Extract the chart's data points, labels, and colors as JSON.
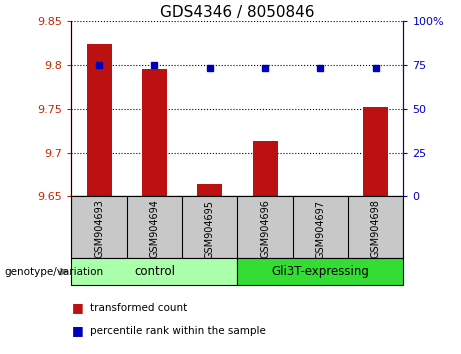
{
  "title": "GDS4346 / 8050846",
  "samples": [
    "GSM904693",
    "GSM904694",
    "GSM904695",
    "GSM904696",
    "GSM904697",
    "GSM904698"
  ],
  "red_values": [
    9.824,
    9.796,
    9.664,
    9.713,
    9.651,
    9.752
  ],
  "blue_values": [
    75,
    75,
    73.5,
    73.5,
    73.5,
    73.5
  ],
  "ylim_left": [
    9.65,
    9.85
  ],
  "ylim_right": [
    0,
    100
  ],
  "yticks_left": [
    9.65,
    9.7,
    9.75,
    9.8,
    9.85
  ],
  "yticks_right": [
    0,
    25,
    50,
    75,
    100
  ],
  "ytick_labels_right": [
    "0",
    "25",
    "50",
    "75",
    "100%"
  ],
  "bar_color": "#BB1111",
  "dot_color": "#0000BB",
  "baseline": 9.65,
  "title_fontsize": 11,
  "axis_color_left": "#CC2200",
  "axis_color_right": "#0000CC",
  "tick_area_bg": "#C8C8C8",
  "control_color": "#AAFFAA",
  "gli_color": "#33DD33",
  "legend_items": [
    {
      "label": "transformed count",
      "color": "#BB1111"
    },
    {
      "label": "percentile rank within the sample",
      "color": "#0000BB"
    }
  ]
}
